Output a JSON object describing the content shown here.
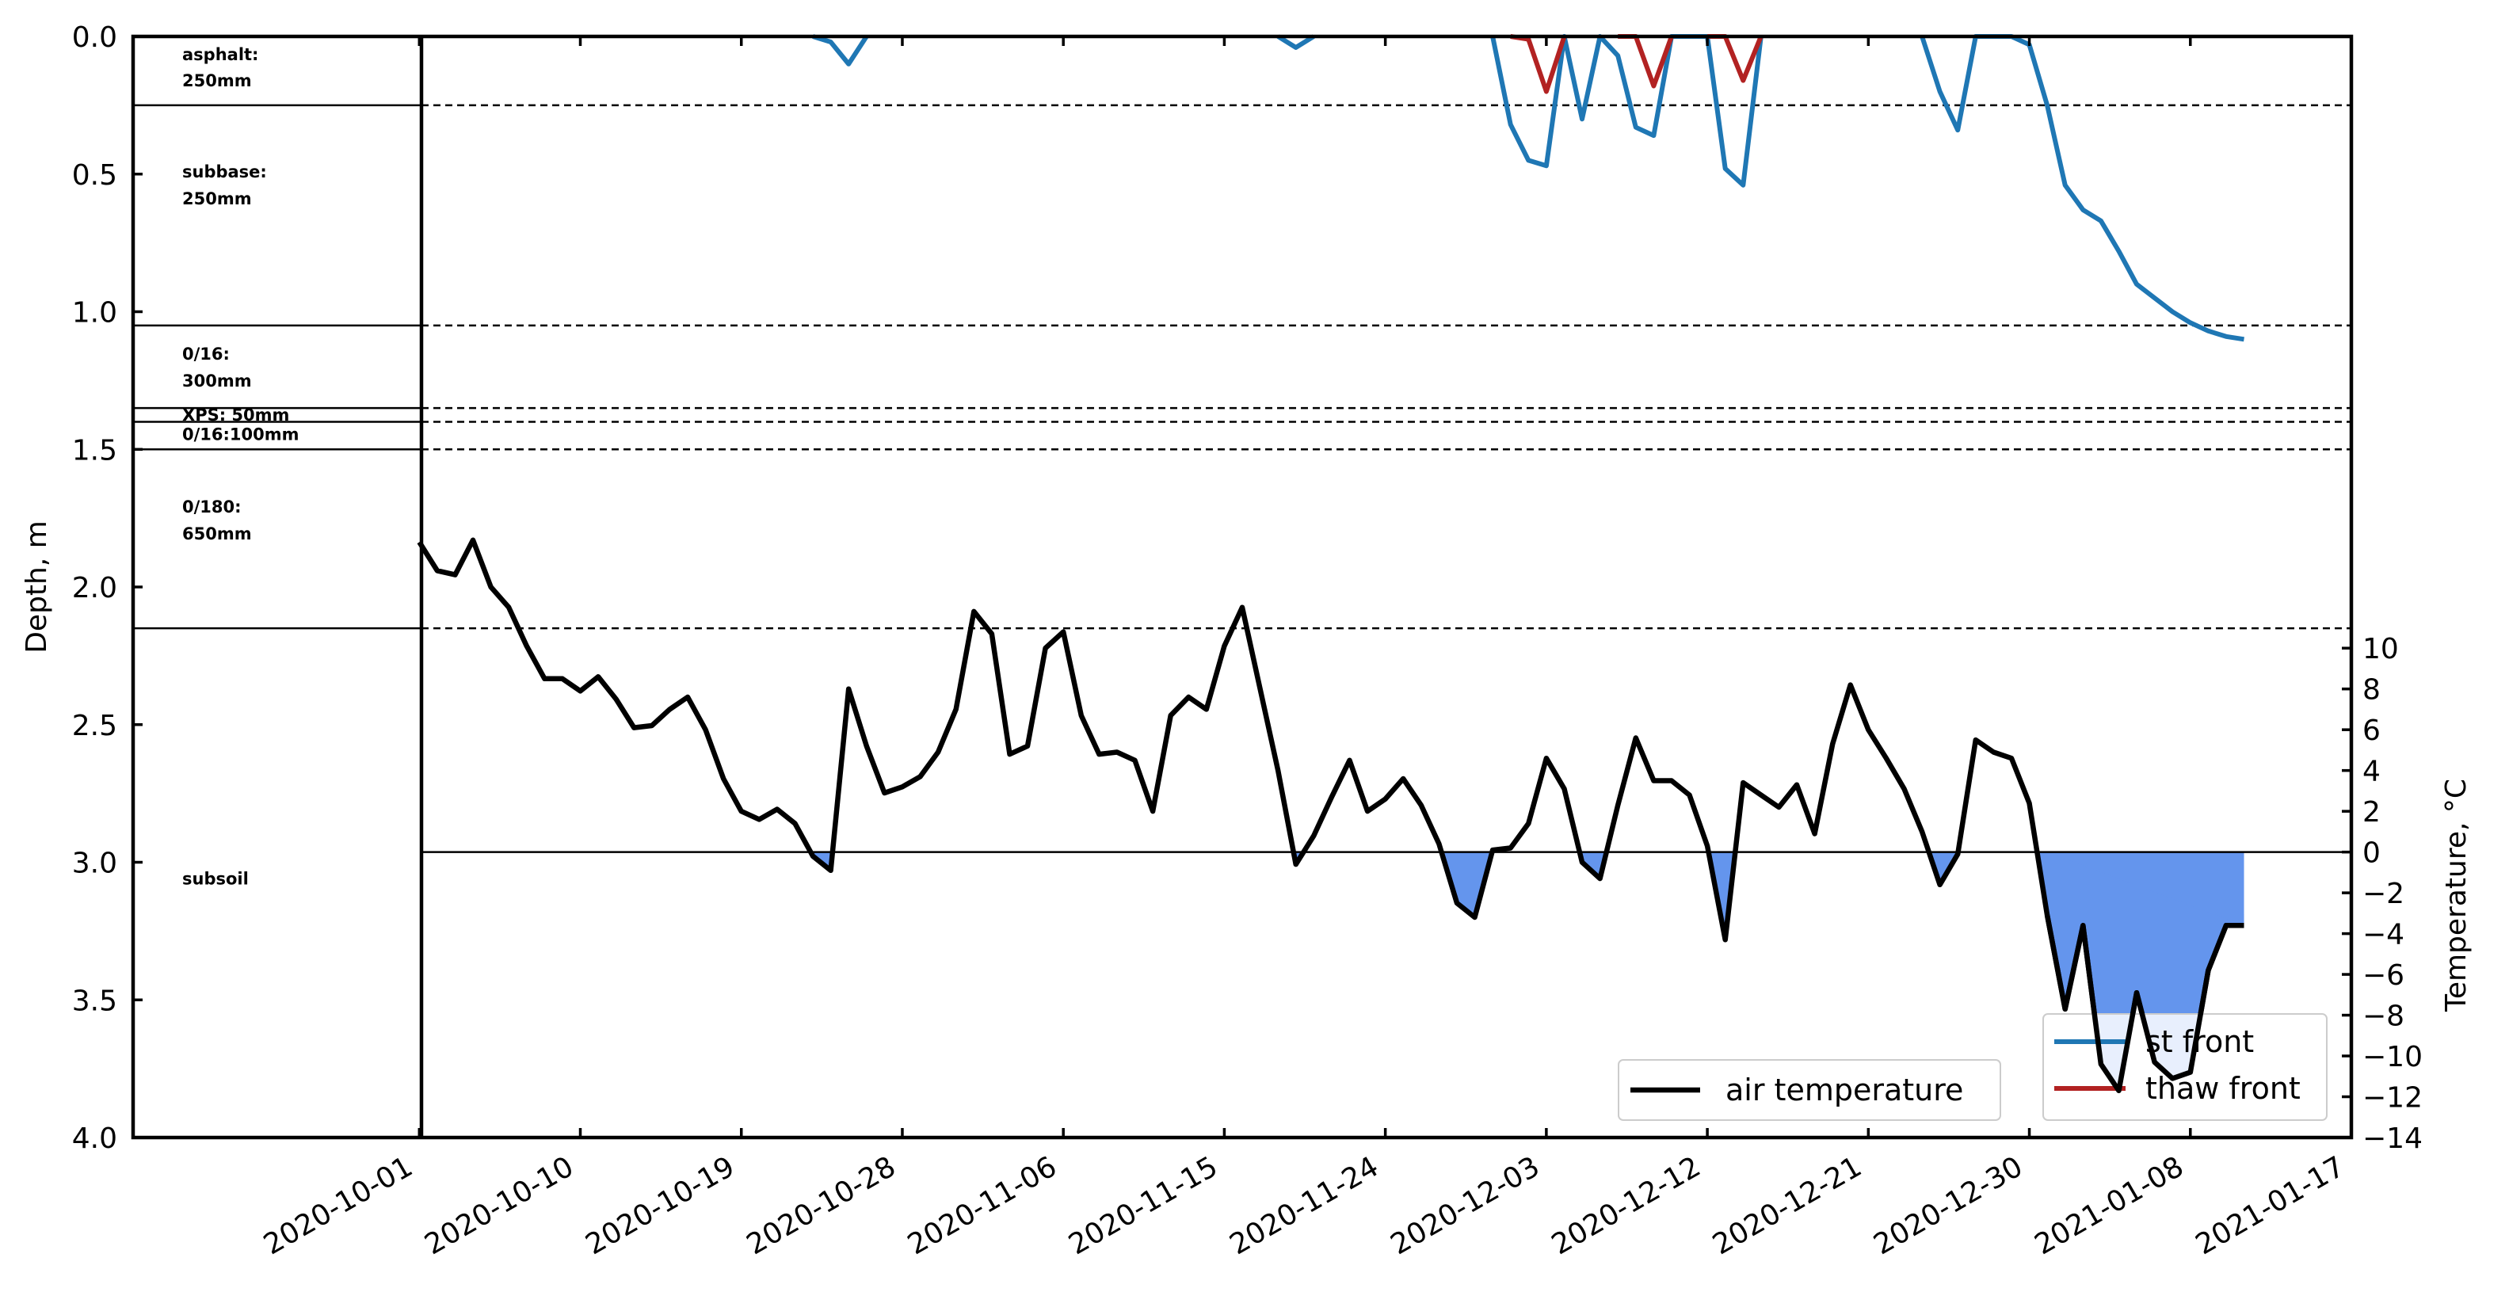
{
  "chart_data": {
    "type": "line",
    "x_ticks": [
      "2020-10-01",
      "2020-10-10",
      "2020-10-19",
      "2020-10-28",
      "2020-11-06",
      "2020-11-15",
      "2020-11-24",
      "2020-12-03",
      "2020-12-12",
      "2020-12-21",
      "2020-12-30",
      "2021-01-08",
      "2021-01-17"
    ],
    "x_range": [
      "2020-09-15",
      "2021-01-17"
    ],
    "depth_axis": {
      "label": "Depth, m",
      "range": [
        4.0,
        0.0
      ],
      "inverted": true,
      "ticks": [
        "0.0",
        "0.5",
        "1.0",
        "1.5",
        "2.0",
        "2.5",
        "3.0",
        "3.5",
        "4.0"
      ]
    },
    "temperature_axis": {
      "label": "Temperature, °C",
      "range": [
        -14,
        40
      ],
      "ticks": [
        "10",
        "8",
        "6",
        "4",
        "2",
        "0",
        "−2",
        "−4",
        "−6",
        "−8",
        "−10",
        "−12",
        "−14"
      ]
    },
    "grid": false,
    "layers": [
      {
        "name_line": "asphalt:",
        "thickness_line": "250mm",
        "bottom_depth": 0.25
      },
      {
        "name_line": "subbase:",
        "thickness_line": "250mm",
        "bottom_depth": 1.05
      },
      {
        "name_line": "0/16:",
        "thickness_line": "300mm",
        "bottom_depth": 1.35
      },
      {
        "name_line": "XPS: 50mm",
        "thickness_line": "",
        "bottom_depth": 1.4
      },
      {
        "name_line": "0/16:100mm",
        "thickness_line": "",
        "bottom_depth": 1.5
      },
      {
        "name_line": "0/180:",
        "thickness_line": "650mm",
        "bottom_depth": 2.15
      },
      {
        "name_line": "subsoil",
        "thickness_line": "",
        "bottom_depth": null
      }
    ],
    "series": [
      {
        "name": "air temperature",
        "color": "#000000",
        "axis": "temperature",
        "x": [
          "2020-10-01",
          "2020-10-02",
          "2020-10-03",
          "2020-10-04",
          "2020-10-05",
          "2020-10-06",
          "2020-10-07",
          "2020-10-08",
          "2020-10-09",
          "2020-10-10",
          "2020-10-11",
          "2020-10-12",
          "2020-10-13",
          "2020-10-14",
          "2020-10-15",
          "2020-10-16",
          "2020-10-17",
          "2020-10-18",
          "2020-10-19",
          "2020-10-20",
          "2020-10-21",
          "2020-10-22",
          "2020-10-23",
          "2020-10-24",
          "2020-10-25",
          "2020-10-26",
          "2020-10-27",
          "2020-10-28",
          "2020-10-29",
          "2020-10-30",
          "2020-10-31",
          "2020-11-01",
          "2020-11-02",
          "2020-11-03",
          "2020-11-04",
          "2020-11-05",
          "2020-11-06",
          "2020-11-07",
          "2020-11-08",
          "2020-11-09",
          "2020-11-10",
          "2020-11-11",
          "2020-11-12",
          "2020-11-13",
          "2020-11-14",
          "2020-11-15",
          "2020-11-16",
          "2020-11-17",
          "2020-11-18",
          "2020-11-19",
          "2020-11-20",
          "2020-11-21",
          "2020-11-22",
          "2020-11-23",
          "2020-11-24",
          "2020-11-25",
          "2020-11-26",
          "2020-11-27",
          "2020-11-28",
          "2020-11-29",
          "2020-11-30",
          "2020-12-01",
          "2020-12-02",
          "2020-12-03",
          "2020-12-04",
          "2020-12-05",
          "2020-12-06",
          "2020-12-07",
          "2020-12-08",
          "2020-12-09",
          "2020-12-10",
          "2020-12-11",
          "2020-12-12",
          "2020-12-13",
          "2020-12-14",
          "2020-12-15",
          "2020-12-16",
          "2020-12-17",
          "2020-12-18",
          "2020-12-19",
          "2020-12-20",
          "2020-12-21",
          "2020-12-22",
          "2020-12-23",
          "2020-12-24",
          "2020-12-25",
          "2020-12-26",
          "2020-12-27",
          "2020-12-28",
          "2020-12-29",
          "2020-12-30",
          "2020-12-31",
          "2021-01-01",
          "2021-01-02",
          "2021-01-03",
          "2021-01-04",
          "2021-01-05",
          "2021-01-06",
          "2021-01-07",
          "2021-01-08",
          "2021-01-09",
          "2021-01-10",
          "2021-01-11"
        ],
        "values": [
          15.2,
          13.8,
          13.6,
          15.3,
          13.0,
          12.0,
          10.1,
          8.5,
          8.5,
          7.9,
          8.6,
          7.5,
          6.1,
          6.2,
          7.0,
          7.6,
          6.0,
          3.6,
          2.0,
          1.6,
          2.1,
          1.4,
          -0.2,
          -0.9,
          8.0,
          5.2,
          2.9,
          3.2,
          3.7,
          4.9,
          7.0,
          11.8,
          10.7,
          4.8,
          5.2,
          10.0,
          10.8,
          6.7,
          4.8,
          4.9,
          4.5,
          2.0,
          6.7,
          7.6,
          7.0,
          10.1,
          12.0,
          8.0,
          4.0,
          -0.6,
          0.8,
          2.7,
          4.5,
          2.0,
          2.6,
          3.6,
          2.3,
          0.4,
          -2.5,
          -3.2,
          0.1,
          0.2,
          1.4,
          4.6,
          3.1,
          -0.5,
          -1.3,
          2.3,
          5.6,
          3.5,
          3.5,
          2.8,
          0.3,
          -4.3,
          3.4,
          2.8,
          2.2,
          3.3,
          0.9,
          5.3,
          8.2,
          6.0,
          4.6,
          3.1,
          1.0,
          -1.6,
          -0.1,
          5.5,
          4.9,
          4.6,
          2.4,
          -3.1,
          -7.7,
          -3.6,
          -10.4,
          -11.7,
          -6.9,
          -10.3,
          -11.1,
          -10.8,
          -5.8,
          -3.6,
          -3.6
        ]
      },
      {
        "name": "frost front",
        "legend_visible_text": "st front",
        "color": "#1f77b4",
        "axis": "depth",
        "segments": [
          {
            "x": [
              "2020-10-23",
              "2020-10-24",
              "2020-10-25",
              "2020-10-26"
            ],
            "values": [
              0.0,
              0.02,
              0.1,
              0.0
            ]
          },
          {
            "x": [
              "2020-11-18",
              "2020-11-19",
              "2020-11-20"
            ],
            "values": [
              0.0,
              0.04,
              0.0
            ]
          },
          {
            "x": [
              "2020-11-30",
              "2020-12-01",
              "2020-12-02",
              "2020-12-03",
              "2020-12-04",
              "2020-12-05",
              "2020-12-06",
              "2020-12-07",
              "2020-12-08",
              "2020-12-09",
              "2020-12-10",
              "2020-12-11",
              "2020-12-12",
              "2020-12-13",
              "2020-12-14",
              "2020-12-15"
            ],
            "values": [
              0.0,
              0.32,
              0.45,
              0.47,
              0.0,
              0.3,
              0.0,
              0.07,
              0.33,
              0.36,
              0.0,
              0.0,
              0.0,
              0.48,
              0.54,
              0.0
            ]
          },
          {
            "x": [
              "2020-12-24",
              "2020-12-25",
              "2020-12-26",
              "2020-12-27",
              "2020-12-28",
              "2020-12-29",
              "2020-12-30",
              "2020-12-31",
              "2021-01-01",
              "2021-01-02",
              "2021-01-03",
              "2021-01-04",
              "2021-01-05",
              "2021-01-06",
              "2021-01-07",
              "2021-01-08",
              "2021-01-09",
              "2021-01-10",
              "2021-01-11"
            ],
            "values": [
              0.0,
              0.2,
              0.34,
              0.0,
              0.0,
              0.0,
              0.03,
              0.25,
              0.54,
              0.63,
              0.67,
              0.78,
              0.9,
              0.95,
              1.0,
              1.04,
              1.07,
              1.09,
              1.1
            ]
          }
        ]
      },
      {
        "name": "thaw front",
        "color": "#b22222",
        "axis": "depth",
        "segments": [
          {
            "x": [
              "2020-12-01",
              "2020-12-02",
              "2020-12-03",
              "2020-12-04"
            ],
            "values": [
              0.0,
              0.01,
              0.2,
              0.0
            ]
          },
          {
            "x": [
              "2020-12-07",
              "2020-12-08",
              "2020-12-09",
              "2020-12-10"
            ],
            "values": [
              0.0,
              0.0,
              0.18,
              0.0
            ]
          },
          {
            "x": [
              "2020-12-12",
              "2020-12-13",
              "2020-12-14",
              "2020-12-15"
            ],
            "values": [
              0.0,
              0.0,
              0.16,
              0.0
            ]
          }
        ]
      }
    ],
    "freezing_fill_color": "#6495ed",
    "legends": [
      {
        "position": "bottom-center",
        "entries": [
          "air temperature"
        ]
      },
      {
        "position": "bottom-right",
        "entries": [
          "st front",
          "thaw front"
        ]
      }
    ]
  }
}
